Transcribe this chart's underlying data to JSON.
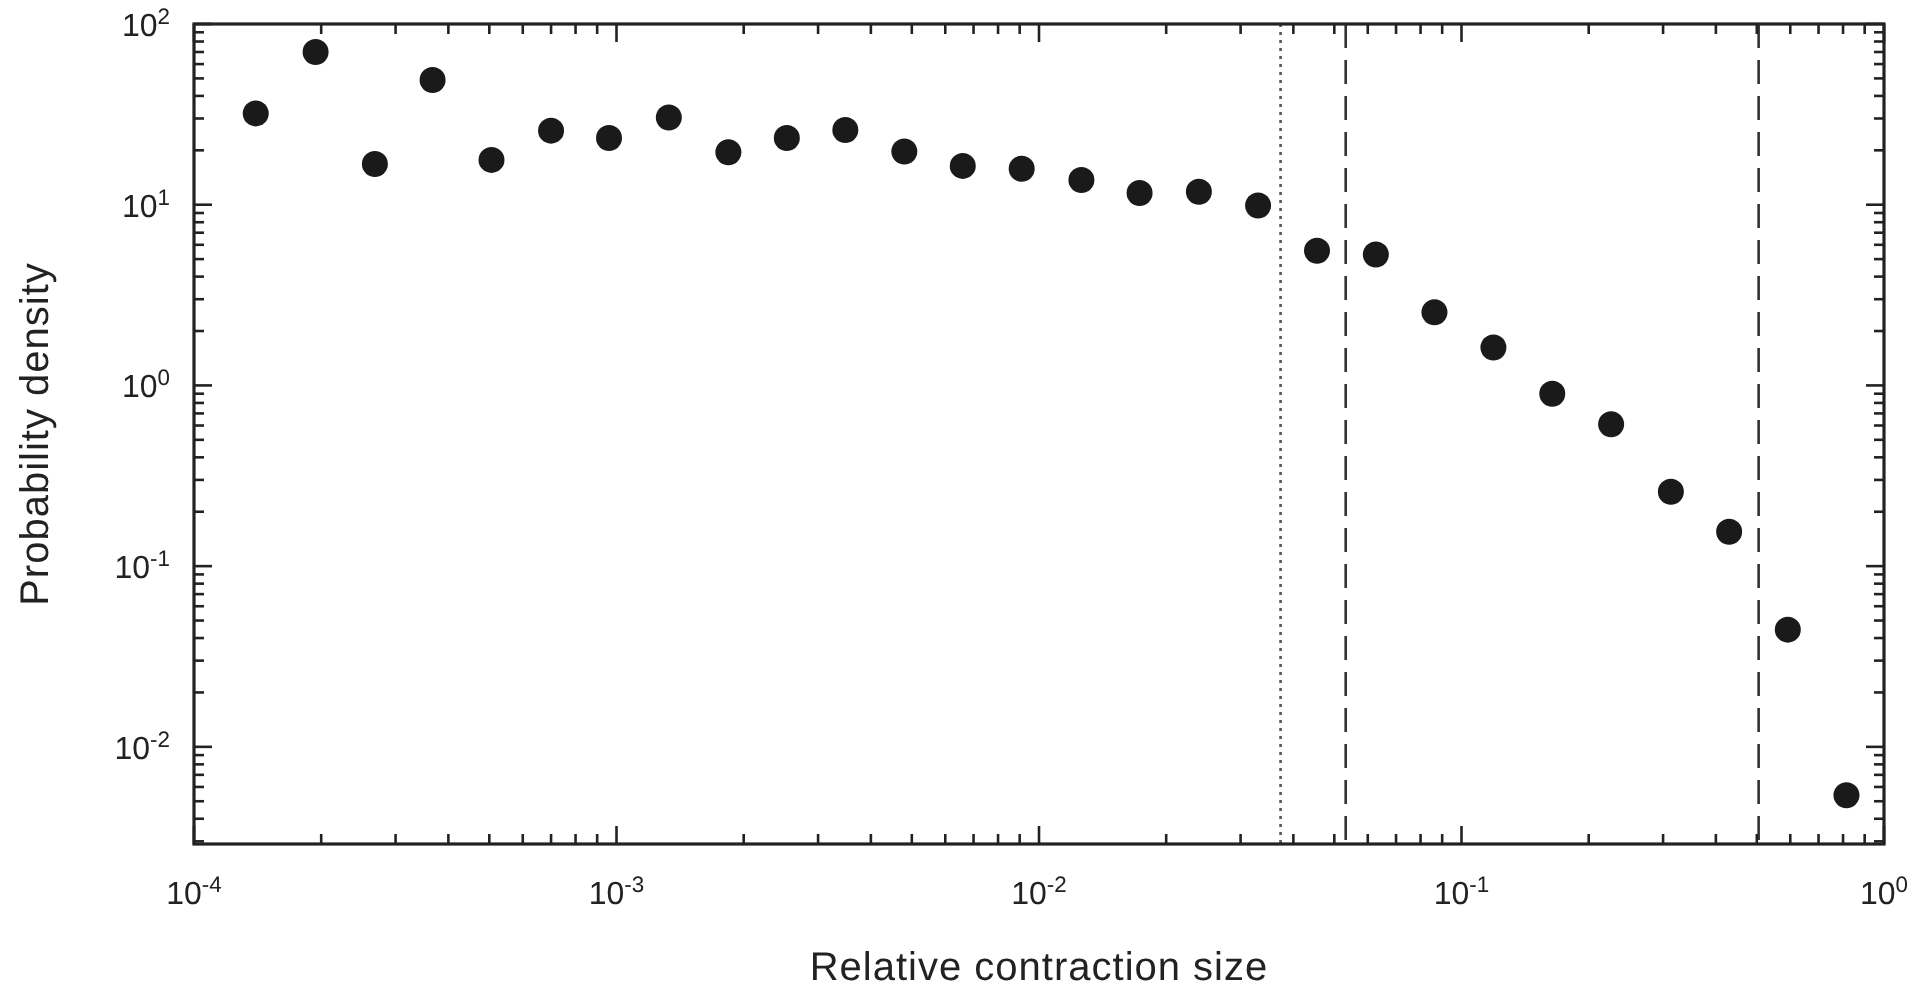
{
  "chart_data": {
    "type": "scatter",
    "xlabel": "Relative contraction size",
    "ylabel": "Probability density",
    "log": "xy",
    "marker": "circle",
    "grid": false,
    "xlim": [
      0.0001,
      1
    ],
    "ylim": [
      0.0029,
      100
    ],
    "xticks": [
      {
        "value": 0.0001,
        "label": "10$^{-4}$"
      },
      {
        "value": 0.0002,
        "label": null
      },
      {
        "value": 0.0003,
        "label": null
      },
      {
        "value": 0.0004,
        "label": null
      },
      {
        "value": 0.0005,
        "label": null
      },
      {
        "value": 0.0006,
        "label": null
      },
      {
        "value": 0.0007,
        "label": null
      },
      {
        "value": 0.0008,
        "label": null
      },
      {
        "value": 0.0009,
        "label": null
      },
      {
        "value": 0.001,
        "label": "10$^{-3}$"
      },
      {
        "value": 0.002,
        "label": null
      },
      {
        "value": 0.003,
        "label": null
      },
      {
        "value": 0.004,
        "label": null
      },
      {
        "value": 0.005,
        "label": null
      },
      {
        "value": 0.006,
        "label": null
      },
      {
        "value": 0.007,
        "label": null
      },
      {
        "value": 0.008,
        "label": null
      },
      {
        "value": 0.009,
        "label": null
      },
      {
        "value": 0.01,
        "label": "10$^{-2}$"
      },
      {
        "value": 0.02,
        "label": null
      },
      {
        "value": 0.03,
        "label": null
      },
      {
        "value": 0.04,
        "label": null
      },
      {
        "value": 0.05,
        "label": null
      },
      {
        "value": 0.06,
        "label": null
      },
      {
        "value": 0.07,
        "label": null
      },
      {
        "value": 0.08,
        "label": null
      },
      {
        "value": 0.09,
        "label": null
      },
      {
        "value": 0.1,
        "label": "10$^{-1}$"
      },
      {
        "value": 0.2,
        "label": null
      },
      {
        "value": 0.3,
        "label": null
      },
      {
        "value": 0.4,
        "label": null
      },
      {
        "value": 0.5,
        "label": null
      },
      {
        "value": 0.6,
        "label": null
      },
      {
        "value": 0.7,
        "label": null
      },
      {
        "value": 0.8,
        "label": null
      },
      {
        "value": 0.9,
        "label": null
      },
      {
        "value": 1,
        "label": "10$^{0}$"
      }
    ],
    "yticks": [
      {
        "value": 0.003,
        "label": null
      },
      {
        "value": 0.004,
        "label": null
      },
      {
        "value": 0.005,
        "label": null
      },
      {
        "value": 0.006,
        "label": null
      },
      {
        "value": 0.007,
        "label": null
      },
      {
        "value": 0.008,
        "label": null
      },
      {
        "value": 0.009,
        "label": null
      },
      {
        "value": 0.01,
        "label": "10$^{-2}$"
      },
      {
        "value": 0.02,
        "label": null
      },
      {
        "value": 0.03,
        "label": null
      },
      {
        "value": 0.04,
        "label": null
      },
      {
        "value": 0.05,
        "label": null
      },
      {
        "value": 0.06,
        "label": null
      },
      {
        "value": 0.07,
        "label": null
      },
      {
        "value": 0.08,
        "label": null
      },
      {
        "value": 0.09,
        "label": null
      },
      {
        "value": 0.1,
        "label": "10$^{-1}$"
      },
      {
        "value": 0.2,
        "label": null
      },
      {
        "value": 0.3,
        "label": null
      },
      {
        "value": 0.4,
        "label": null
      },
      {
        "value": 0.5,
        "label": null
      },
      {
        "value": 0.6,
        "label": null
      },
      {
        "value": 0.7,
        "label": null
      },
      {
        "value": 0.8,
        "label": null
      },
      {
        "value": 0.9,
        "label": null
      },
      {
        "value": 1,
        "label": "10$^{0}$"
      },
      {
        "value": 2,
        "label": null
      },
      {
        "value": 3,
        "label": null
      },
      {
        "value": 4,
        "label": null
      },
      {
        "value": 5,
        "label": null
      },
      {
        "value": 6,
        "label": null
      },
      {
        "value": 7,
        "label": null
      },
      {
        "value": 8,
        "label": null
      },
      {
        "value": 9,
        "label": null
      },
      {
        "value": 10,
        "label": "10$^{1}$"
      },
      {
        "value": 20,
        "label": null
      },
      {
        "value": 30,
        "label": null
      },
      {
        "value": 40,
        "label": null
      },
      {
        "value": 50,
        "label": null
      },
      {
        "value": 60,
        "label": null
      },
      {
        "value": 70,
        "label": null
      },
      {
        "value": 80,
        "label": null
      },
      {
        "value": 90,
        "label": null
      },
      {
        "value": 100,
        "label": "10$^{2}$"
      }
    ],
    "x": [
      0.00014,
      0.000194,
      0.000268,
      0.000367,
      0.000506,
      0.0007,
      0.00096,
      0.00133,
      0.00184,
      0.00253,
      0.00348,
      0.0048,
      0.0066,
      0.0091,
      0.0126,
      0.0173,
      0.0239,
      0.033,
      0.0455,
      0.0627,
      0.0863,
      0.119,
      0.164,
      0.226,
      0.313,
      0.43,
      0.592,
      0.815
    ],
    "series": [
      {
        "color": "#1a1a1a",
        "values": [
          32,
          70,
          16.8,
          49,
          17.7,
          25.7,
          23.4,
          30.4,
          19.5,
          23.4,
          25.9,
          19.7,
          16.4,
          15.8,
          13.7,
          11.6,
          11.8,
          9.9,
          5.56,
          5.3,
          2.54,
          1.62,
          0.9,
          0.61,
          0.258,
          0.155,
          0.0445,
          0.0054
        ]
      }
    ],
    "ref_lines": [
      {
        "axis": "x",
        "value": 0.0373,
        "line_style": "dotted",
        "color": "#555555"
      },
      {
        "axis": "x",
        "value": 0.0532,
        "line_style": "dashed",
        "color": "#333333"
      },
      {
        "axis": "x",
        "value": 0.505,
        "line_style": "dashed",
        "color": "#333333"
      }
    ]
  }
}
